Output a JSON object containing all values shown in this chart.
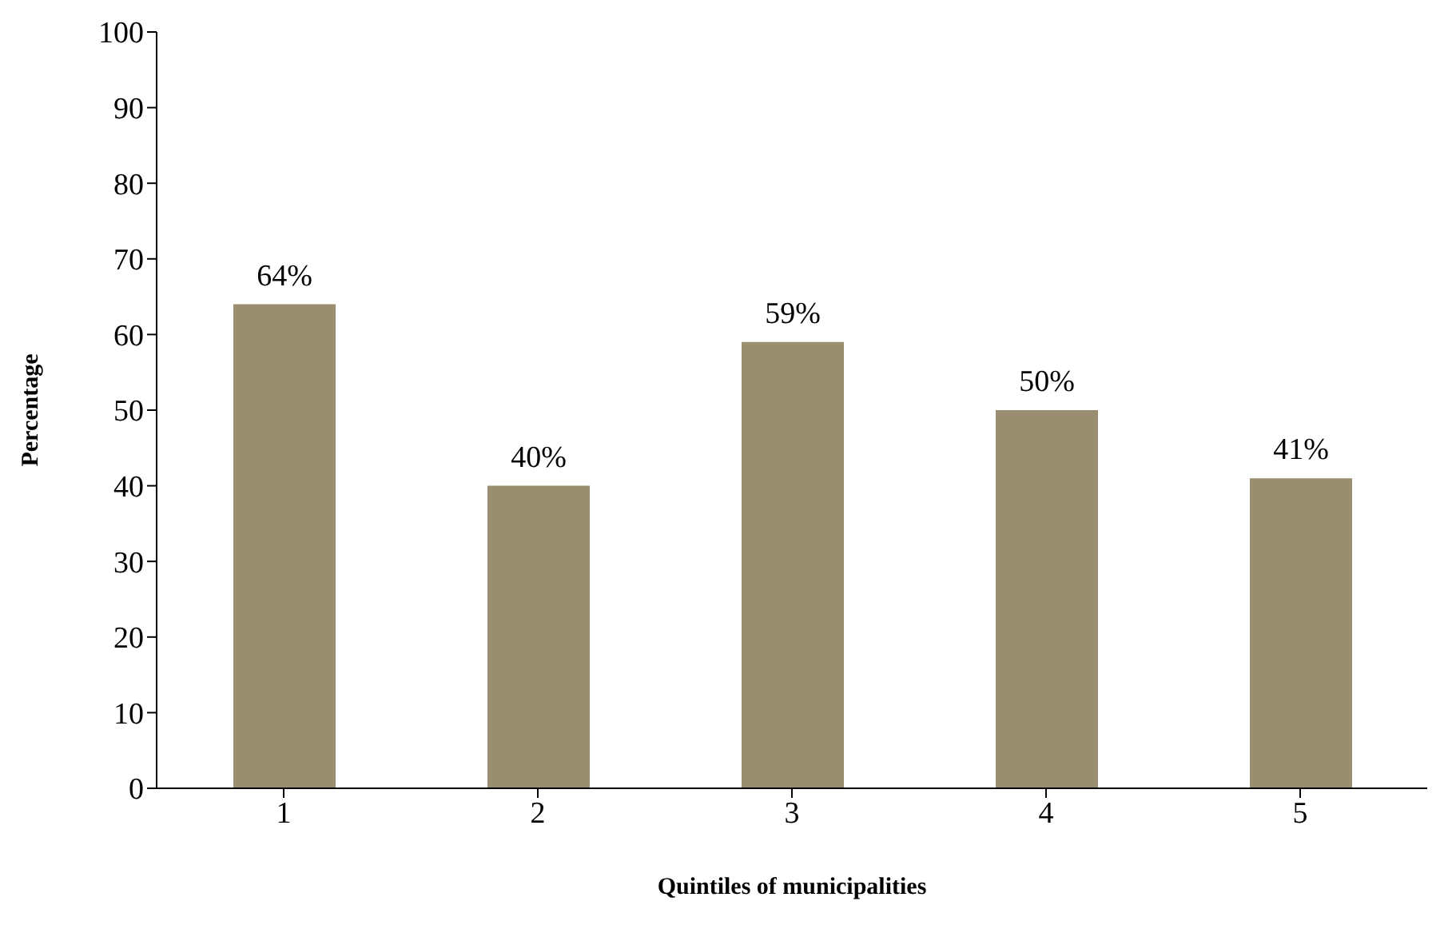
{
  "chart_data": {
    "type": "bar",
    "xlabel": "Quintiles of municipalities",
    "ylabel": "Percentage",
    "categories": [
      "1",
      "2",
      "3",
      "4",
      "5"
    ],
    "values": [
      64,
      40,
      59,
      50,
      41
    ],
    "value_labels": [
      "64%",
      "40%",
      "59%",
      "50%",
      "41%"
    ],
    "color": "#998f70",
    "ylim": [
      0,
      100
    ],
    "yticks": [
      0,
      10,
      20,
      30,
      40,
      50,
      60,
      70,
      80,
      90,
      100
    ],
    "grid": false,
    "legend": false
  }
}
